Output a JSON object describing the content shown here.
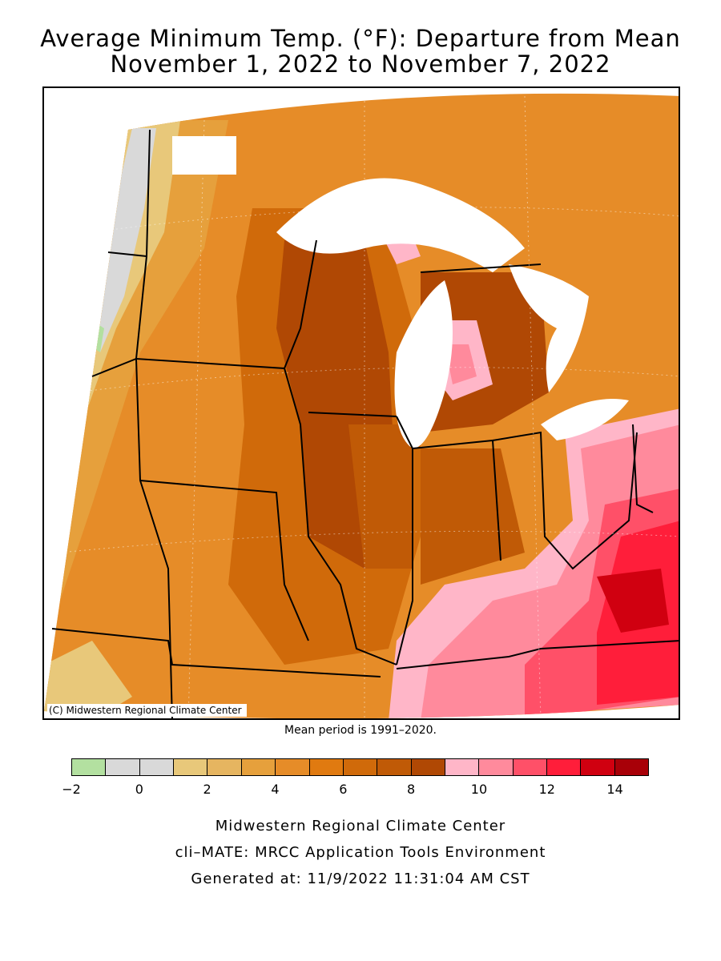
{
  "title_line1": "Average Minimum Temp. (°F): Departure from Mean",
  "title_line2": "November 1, 2022 to November 7, 2022",
  "copyright": "(C) Midwestern Regional Climate Center",
  "mean_note": "Mean period is 1991–2020.",
  "legend": {
    "colors": [
      "#b3e0a0",
      "#d9d9d9",
      "#d9d9d9",
      "#e8c87a",
      "#e6b560",
      "#e6a03c",
      "#e68c28",
      "#e07a10",
      "#d06a0a",
      "#c05a06",
      "#b04804",
      "#ffb6c8",
      "#ff8a9c",
      "#ff5068",
      "#ff1e3a",
      "#d00010",
      "#a80008"
    ],
    "tick_labels": [
      "−2",
      "0",
      "2",
      "4",
      "6",
      "8",
      "10",
      "12",
      "14"
    ]
  },
  "footer": {
    "line1": "Midwestern Regional Climate Center",
    "line2": "cli–MATE: MRCC Application Tools Environment",
    "line3": "Generated at: 11/9/2022 11:31:04 AM CST"
  }
}
